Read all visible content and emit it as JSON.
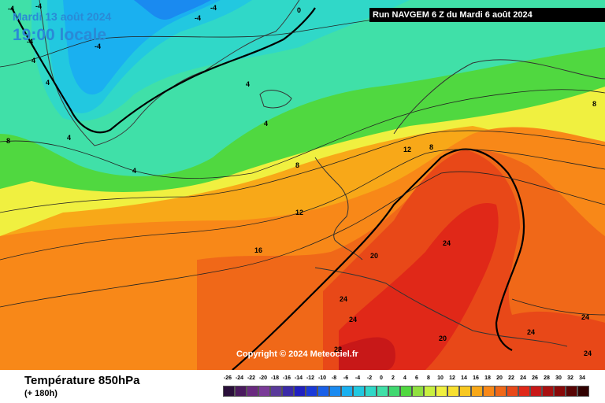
{
  "header": {
    "date": "Mardi 13 août 2024",
    "time": "19:00 locale",
    "run": "Run NAVGEM 6 Z du Mardi 6 août 2024"
  },
  "footer": {
    "parameter": "Température 850hPa",
    "lead": "(+ 180h)",
    "copyright": "Copyright © 2024 Meteociel.fr"
  },
  "legend": {
    "labels": [
      "-26",
      "-24",
      "-22",
      "-20",
      "-18",
      "-16",
      "-14",
      "-12",
      "-10",
      "-8",
      "-6",
      "-4",
      "-2",
      "0",
      "2",
      "4",
      "6",
      "8",
      "10",
      "12",
      "14",
      "16",
      "18",
      "20",
      "22",
      "24",
      "26",
      "28",
      "30",
      "32",
      "34"
    ],
    "colors": [
      "#2a0f3a",
      "#4a1a5e",
      "#6a2a80",
      "#7a3a98",
      "#5a3a9a",
      "#3a2aa8",
      "#2020c0",
      "#1a3ad8",
      "#1a60e8",
      "#1a8af0",
      "#1ab0f0",
      "#22c8e0",
      "#30d8c8",
      "#40e0a8",
      "#40d870",
      "#50d840",
      "#90e040",
      "#c8f040",
      "#f0f040",
      "#f8e030",
      "#f8c820",
      "#f8a818",
      "#f88818",
      "#f06818",
      "#e84818",
      "#e02818",
      "#c81818",
      "#a81010",
      "#880808",
      "#580404",
      "#300000"
    ]
  },
  "map": {
    "isotherm_labels": [
      "-4",
      "-4",
      "-4",
      "-4",
      "-4",
      "0",
      "-4",
      "4",
      "4",
      "4",
      "4",
      "4",
      "4",
      "8",
      "8",
      "8",
      "8",
      "12",
      "12",
      "16",
      "20",
      "24",
      "24",
      "24",
      "24",
      "24",
      "24",
      "20",
      "28"
    ]
  }
}
